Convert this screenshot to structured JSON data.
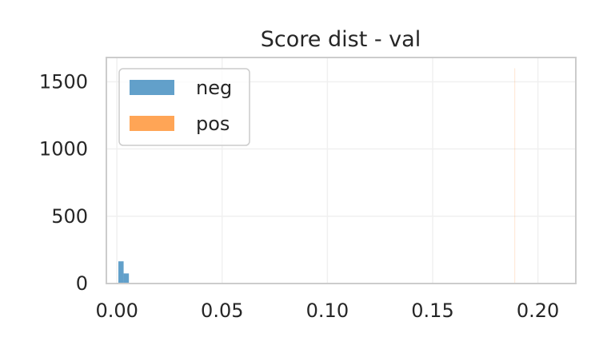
{
  "chart_data": {
    "type": "bar",
    "title": "Score dist - val",
    "xlabel": "",
    "ylabel": "",
    "xlim": [
      -0.005,
      0.218
    ],
    "ylim": [
      0,
      1680
    ],
    "x_ticks": [
      "0.00",
      "0.05",
      "0.10",
      "0.15",
      "0.20"
    ],
    "x_tick_values": [
      0.0,
      0.05,
      0.1,
      0.15,
      0.2
    ],
    "y_ticks": [
      "0",
      "500",
      "1000",
      "1500"
    ],
    "y_tick_values": [
      0,
      500,
      1000,
      1500
    ],
    "grid": true,
    "legend_placement": "top-left",
    "series": [
      {
        "name": "neg",
        "color": "#1f77b4",
        "bins": [
          {
            "x0": 0.0007,
            "x1": 0.0032,
            "count": 165
          },
          {
            "x0": 0.0032,
            "x1": 0.0057,
            "count": 75
          }
        ]
      },
      {
        "name": "pos",
        "color": "#ff7f0e",
        "bins": [
          {
            "x0": 0.1888,
            "x1": 0.1892,
            "count": 1600
          }
        ]
      }
    ]
  }
}
